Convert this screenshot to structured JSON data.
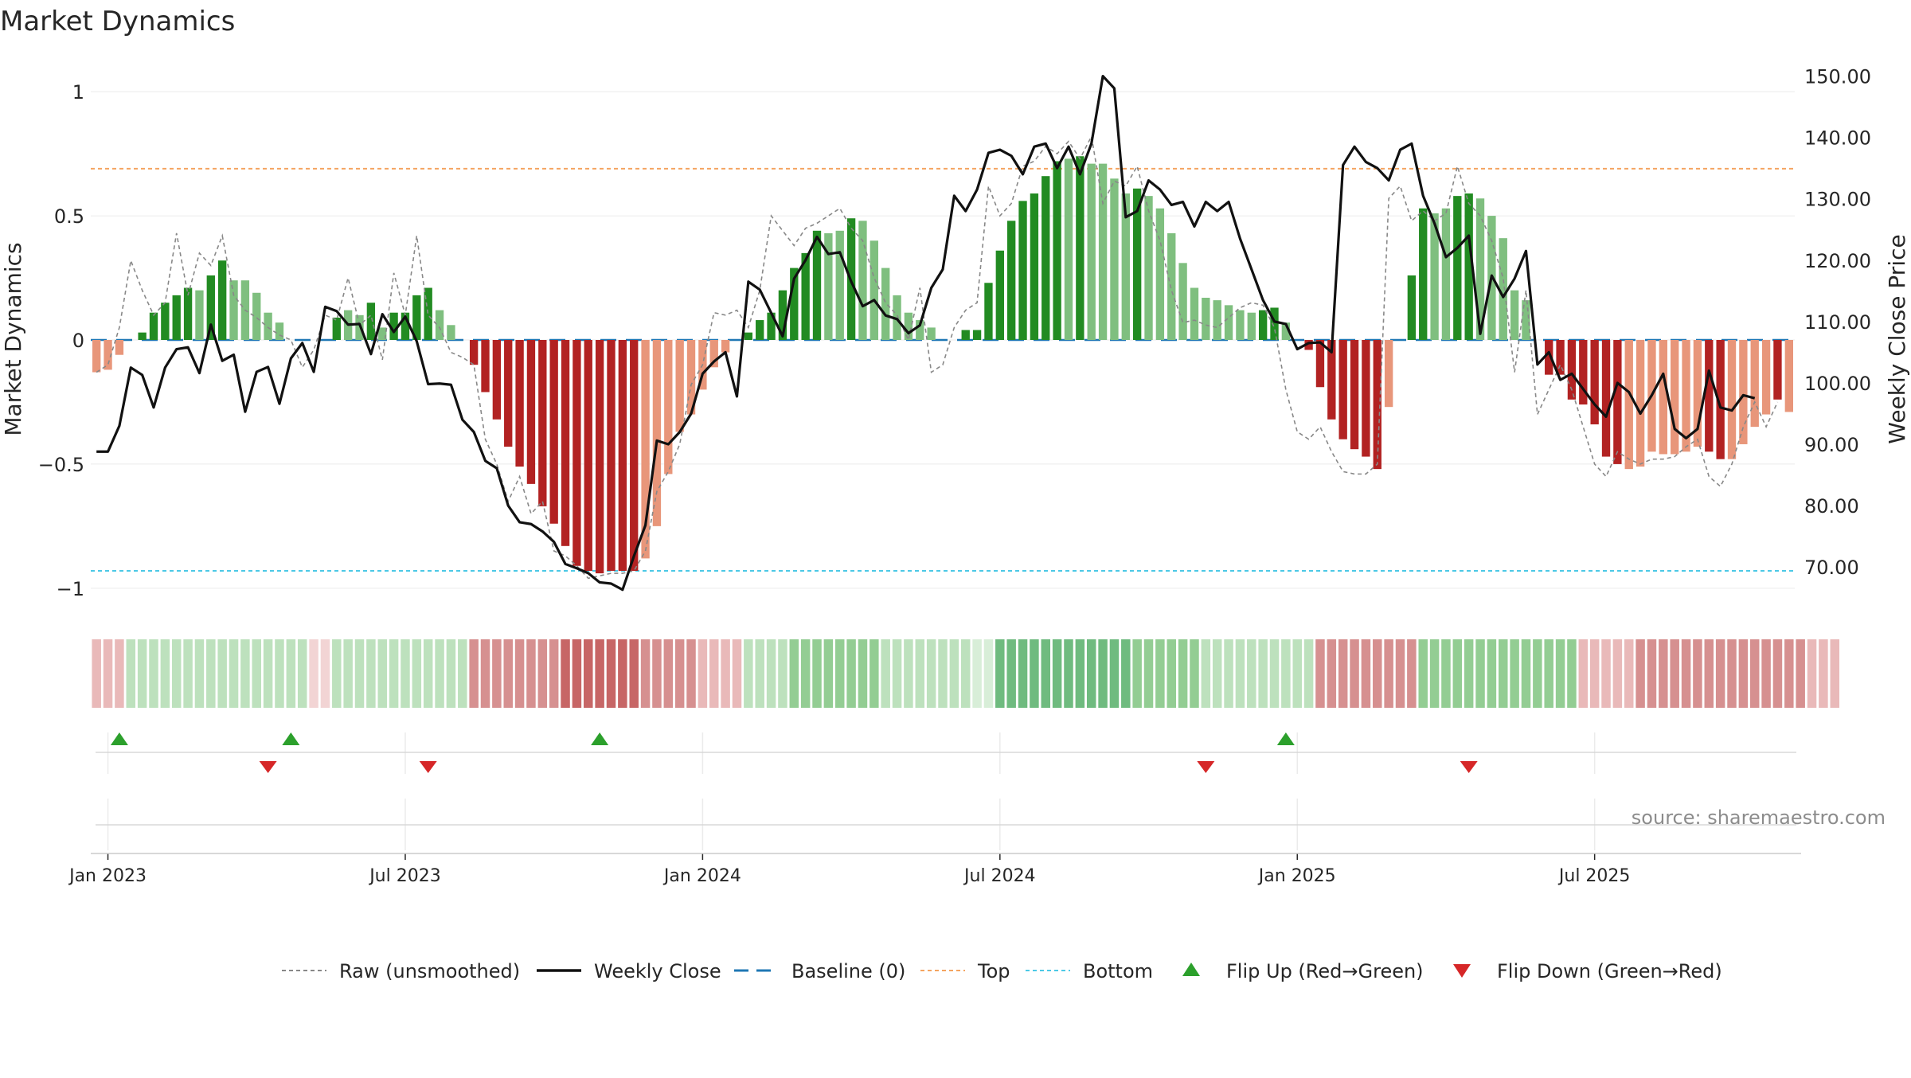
{
  "chart_data": {
    "type": "bar",
    "title": "Market Dynamics",
    "ylabel_left": "Market Dynamics",
    "ylabel_right": "Weekly Close Price",
    "ylim_left": [
      -1.1,
      1.1
    ],
    "ylim_right": [
      62.5,
      151.5
    ],
    "y_ticks_left": [
      {
        "value": 1,
        "label": "1"
      },
      {
        "value": 0.5,
        "label": "0.5"
      },
      {
        "value": 0,
        "label": "0"
      },
      {
        "value": -0.5,
        "label": "−0.5"
      },
      {
        "value": -1,
        "label": "−1"
      }
    ],
    "y_ticks_right": [
      "70.00",
      "80.00",
      "90.00",
      "100.00",
      "110.00",
      "120.00",
      "130.00",
      "140.00",
      "150.00"
    ],
    "x_ticks": [
      "Jan 2023",
      "Jul 2023",
      "Jan 2024",
      "Jul 2024",
      "Jan 2025",
      "Jul 2025"
    ],
    "x_tick_weeks": [
      1,
      27,
      53,
      79,
      105,
      131
    ],
    "grid": true,
    "reference_lines": {
      "baseline": 0,
      "top": 0.69,
      "bottom": -0.93
    },
    "colors": {
      "strong_green": "#228b22",
      "light_green": "#7fbf7f",
      "strong_red": "#b22222",
      "light_red": "#e8967a",
      "close_line": "#111111",
      "raw_line": "#888888",
      "baseline": "#1f77b4",
      "top": "#f4a460",
      "bottom": "#4cc9e6",
      "flip_up": "#2ca02c",
      "flip_down": "#d62728"
    },
    "series": [
      {
        "name": "Market Dynamics",
        "kind": "bar",
        "values": [
          -0.13,
          -0.12,
          -0.06,
          0.0,
          0.03,
          0.11,
          0.15,
          0.18,
          0.21,
          0.2,
          0.26,
          0.32,
          0.24,
          0.24,
          0.19,
          0.11,
          0.07,
          0.0,
          0.0,
          0.0,
          0.0,
          0.09,
          0.12,
          0.1,
          0.15,
          0.05,
          0.11,
          0.11,
          0.18,
          0.21,
          0.12,
          0.06,
          0.0,
          -0.1,
          -0.21,
          -0.32,
          -0.43,
          -0.51,
          -0.58,
          -0.67,
          -0.74,
          -0.83,
          -0.91,
          -0.93,
          -0.94,
          -0.93,
          -0.93,
          -0.93,
          -0.88,
          -0.75,
          -0.54,
          -0.37,
          -0.3,
          -0.2,
          -0.11,
          -0.05,
          0.0,
          0.03,
          0.08,
          0.11,
          0.2,
          0.29,
          0.35,
          0.44,
          0.43,
          0.44,
          0.49,
          0.48,
          0.4,
          0.29,
          0.18,
          0.11,
          0.08,
          0.05,
          0.0,
          0.0,
          0.04,
          0.04,
          0.23,
          0.36,
          0.48,
          0.56,
          0.59,
          0.66,
          0.72,
          0.73,
          0.74,
          0.71,
          0.71,
          0.65,
          0.59,
          0.61,
          0.58,
          0.53,
          0.43,
          0.31,
          0.21,
          0.17,
          0.16,
          0.14,
          0.12,
          0.11,
          0.12,
          0.13,
          0.07,
          0.0,
          -0.04,
          -0.19,
          -0.32,
          -0.4,
          -0.44,
          -0.47,
          -0.52,
          -0.27,
          0.0,
          0.26,
          0.53,
          0.51,
          0.53,
          0.58,
          0.59,
          0.57,
          0.5,
          0.41,
          0.2,
          0.16,
          0.0,
          -0.14,
          -0.14,
          -0.24,
          -0.26,
          -0.34,
          -0.47,
          -0.5,
          -0.52,
          -0.51,
          -0.45,
          -0.46,
          -0.46,
          -0.45,
          -0.43,
          -0.45,
          -0.48,
          -0.48,
          -0.42,
          -0.35,
          -0.3,
          -0.24,
          -0.29
        ],
        "strength": [
          "L",
          "L",
          "L",
          "S",
          "S",
          "S",
          "S",
          "S",
          "S",
          "L",
          "S",
          "S",
          "L",
          "L",
          "L",
          "L",
          "L",
          "S",
          "S",
          "S",
          "S",
          "S",
          "L",
          "L",
          "S",
          "L",
          "S",
          "S",
          "S",
          "S",
          "L",
          "L",
          "S",
          "S",
          "S",
          "S",
          "S",
          "S",
          "S",
          "S",
          "S",
          "S",
          "S",
          "S",
          "S",
          "S",
          "S",
          "S",
          "L",
          "L",
          "L",
          "L",
          "L",
          "L",
          "L",
          "L",
          "S",
          "S",
          "S",
          "S",
          "S",
          "S",
          "S",
          "S",
          "L",
          "L",
          "S",
          "L",
          "L",
          "L",
          "L",
          "L",
          "L",
          "L",
          "S",
          "S",
          "S",
          "S",
          "S",
          "S",
          "S",
          "S",
          "S",
          "S",
          "S",
          "L",
          "S",
          "L",
          "L",
          "L",
          "L",
          "S",
          "L",
          "L",
          "L",
          "L",
          "L",
          "L",
          "L",
          "L",
          "L",
          "L",
          "S",
          "S",
          "L",
          "S",
          "S",
          "S",
          "S",
          "S",
          "S",
          "S",
          "S",
          "L",
          "S",
          "S",
          "S",
          "L",
          "L",
          "S",
          "S",
          "L",
          "L",
          "L",
          "L",
          "L",
          "S",
          "S",
          "S",
          "S",
          "S",
          "S",
          "S",
          "S",
          "L",
          "L",
          "L",
          "L",
          "L",
          "L",
          "L",
          "S",
          "S",
          "L",
          "L",
          "L",
          "L",
          "S"
        ]
      },
      {
        "name": "Raw (unsmoothed)",
        "kind": "line",
        "values": [
          -0.13,
          -0.1,
          0.05,
          0.32,
          0.2,
          0.1,
          0.15,
          0.43,
          0.18,
          0.35,
          0.3,
          0.42,
          0.18,
          0.12,
          0.09,
          0.05,
          0.02,
          0.0,
          -0.11,
          -0.04,
          0.1,
          0.08,
          0.25,
          0.06,
          0.1,
          -0.08,
          0.27,
          0.1,
          0.42,
          0.1,
          0.05,
          -0.05,
          -0.07,
          -0.1,
          -0.4,
          -0.5,
          -0.65,
          -0.55,
          -0.7,
          -0.65,
          -0.85,
          -0.87,
          -0.91,
          -0.96,
          -0.95,
          -0.94,
          -0.94,
          -0.93,
          -0.85,
          -0.61,
          -0.53,
          -0.42,
          -0.18,
          -0.1,
          0.11,
          0.1,
          0.12,
          0.05,
          0.2,
          0.5,
          0.44,
          0.38,
          0.45,
          0.47,
          0.5,
          0.53,
          0.45,
          0.4,
          0.25,
          0.15,
          0.1,
          0.0,
          0.21,
          -0.13,
          -0.1,
          0.05,
          0.12,
          0.15,
          0.62,
          0.5,
          0.55,
          0.7,
          0.72,
          0.78,
          0.75,
          0.8,
          0.73,
          0.82,
          0.55,
          0.64,
          0.62,
          0.7,
          0.52,
          0.4,
          0.2,
          0.07,
          0.08,
          0.06,
          0.05,
          0.09,
          0.13,
          0.15,
          0.14,
          0.05,
          -0.2,
          -0.37,
          -0.4,
          -0.35,
          -0.45,
          -0.53,
          -0.54,
          -0.54,
          -0.5,
          0.57,
          0.62,
          0.48,
          0.52,
          0.48,
          0.51,
          0.7,
          0.55,
          0.5,
          0.4,
          0.25,
          -0.13,
          0.2,
          -0.3,
          -0.2,
          -0.1,
          -0.2,
          -0.35,
          -0.5,
          -0.55,
          -0.45,
          -0.48,
          -0.5,
          -0.48,
          -0.48,
          -0.47,
          -0.43,
          -0.4,
          -0.55,
          -0.59,
          -0.5,
          -0.35,
          -0.25,
          -0.35,
          -0.25
        ]
      },
      {
        "name": "Weekly Close",
        "kind": "line",
        "axis": "right",
        "values": [
          88.8,
          88.8,
          93.0,
          102.5,
          101.3,
          96.0,
          102.5,
          105.5,
          105.8,
          101.6,
          109.5,
          103.6,
          104.6,
          95.3,
          101.8,
          102.6,
          96.6,
          104.0,
          106.5,
          101.8,
          112.4,
          111.7,
          109.5,
          109.6,
          104.7,
          111.2,
          108.3,
          110.8,
          106.8,
          99.8,
          99.9,
          99.7,
          94.0,
          92.0,
          87.3,
          86.1,
          80.0,
          77.3,
          77.0,
          75.8,
          74.1,
          70.5,
          69.8,
          69.0,
          67.5,
          67.3,
          66.3,
          71.8,
          76.8,
          90.6,
          90.0,
          92.0,
          95.0,
          101.5,
          103.5,
          105.0,
          97.8,
          116.5,
          115.2,
          111.4,
          107.6,
          117.0,
          120.0,
          123.8,
          121.0,
          121.3,
          116.5,
          112.5,
          113.5,
          111.0,
          110.4,
          108.1,
          109.4,
          115.5,
          118.5,
          130.5,
          128.0,
          131.5,
          137.5,
          138.0,
          137.0,
          134.0,
          138.5,
          139.0,
          135.0,
          138.5,
          134.0,
          139.0,
          150.0,
          148.0,
          127.0,
          128.0,
          133.0,
          131.5,
          129.0,
          129.5,
          125.5,
          129.5,
          128.0,
          129.5,
          123.5,
          118.5,
          113.5,
          110.0,
          109.6,
          105.5,
          106.5,
          106.6,
          105.0,
          135.5,
          138.5,
          136.0,
          135.0,
          133.0,
          138.0,
          139.0,
          130.5,
          126.0,
          120.5,
          122.0,
          124.0,
          108.0,
          117.5,
          114.0,
          117.0,
          121.5,
          103.0,
          105.0,
          100.5,
          101.5,
          99.0,
          96.5,
          94.5,
          100.0,
          98.5,
          95.0,
          98.0,
          101.5,
          92.5,
          91.0,
          92.5,
          102.0,
          96.0,
          95.5,
          98.0,
          97.5
        ]
      }
    ],
    "regime_strip": {
      "values": [
        "r1",
        "r1",
        "r1",
        "g1",
        "g1",
        "g1",
        "g1",
        "g1",
        "g1",
        "g1",
        "g1",
        "g1",
        "g1",
        "g1",
        "g1",
        "g1",
        "g1",
        "g1",
        "g1",
        "r0",
        "r0",
        "g1",
        "g1",
        "g1",
        "g1",
        "g1",
        "g1",
        "g1",
        "g1",
        "g1",
        "g1",
        "g1",
        "g1",
        "r2",
        "r2",
        "r2",
        "r2",
        "r2",
        "r2",
        "r2",
        "r2",
        "r3",
        "r3",
        "r3",
        "r3",
        "r3",
        "r3",
        "r3",
        "r2",
        "r2",
        "r2",
        "r2",
        "r2",
        "r1",
        "r1",
        "r1",
        "r1",
        "g1",
        "g1",
        "g1",
        "g1",
        "g2",
        "g2",
        "g2",
        "g2",
        "g2",
        "g2",
        "g2",
        "g2",
        "g1",
        "g1",
        "g1",
        "g1",
        "g1",
        "g1",
        "g1",
        "g1",
        "g0",
        "g0",
        "g3",
        "g3",
        "g3",
        "g3",
        "g3",
        "g3",
        "g3",
        "g3",
        "g3",
        "g3",
        "g3",
        "g3",
        "g2",
        "g2",
        "g2",
        "g2",
        "g2",
        "g2",
        "g1",
        "g1",
        "g1",
        "g1",
        "g1",
        "g1",
        "g1",
        "g1",
        "g1",
        "g1",
        "r2",
        "r2",
        "r2",
        "r2",
        "r2",
        "r2",
        "r2",
        "r2",
        "r2",
        "g2",
        "g2",
        "g2",
        "g2",
        "g2",
        "g2",
        "g2",
        "g2",
        "g2",
        "g2",
        "g2",
        "g2",
        "g2",
        "g2",
        "r1",
        "r1",
        "r1",
        "r1",
        "r1",
        "r2",
        "r2",
        "r2",
        "r2",
        "r2",
        "r2",
        "r2",
        "r2",
        "r2",
        "r2",
        "r2",
        "r2",
        "r2",
        "r2",
        "r2",
        "r1",
        "r1",
        "r1"
      ],
      "palette": {
        "r0": "#f2d4d4",
        "r1": "#e9b9b9",
        "r2": "#d69090",
        "r3": "#c76666",
        "g0": "#d8eed8",
        "g1": "#bde1bd",
        "g2": "#93cd93",
        "g3": "#6fbb7f"
      }
    },
    "flips": {
      "up_weeks": [
        2,
        17,
        44,
        104
      ],
      "down_weeks": [
        15,
        29,
        97,
        120
      ]
    },
    "legend": {
      "position": "bottom",
      "entries": [
        {
          "label": "Raw (unsmoothed)",
          "kind": "raw"
        },
        {
          "label": "Weekly Close",
          "kind": "close"
        },
        {
          "label": "Baseline (0)",
          "kind": "baseline"
        },
        {
          "label": "Top",
          "kind": "top"
        },
        {
          "label": "Bottom",
          "kind": "bottom"
        },
        {
          "label": "Flip Up (Red→Green)",
          "kind": "up"
        },
        {
          "label": "Flip Down (Green→Red)",
          "kind": "down"
        }
      ]
    },
    "source": "source: sharemaestro.com"
  }
}
